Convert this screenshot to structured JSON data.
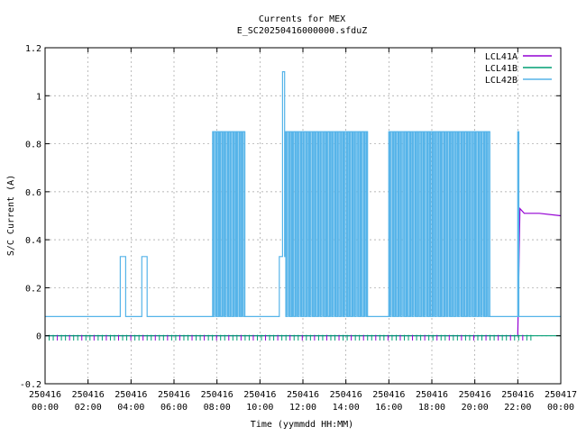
{
  "chart_data": {
    "type": "line",
    "title": "Currents for MEX",
    "subtitle": "E_SC20250416000000.sfduZ",
    "xlabel": "Time (yymmdd HH:MM)",
    "ylabel": "S/C Current (A)",
    "xlim": [
      0,
      24
    ],
    "ylim": [
      -0.2,
      1.2
    ],
    "grid": true,
    "legend_position": "top-right",
    "x_ticks": [
      {
        "value": 0,
        "date": "250416",
        "time": "00:00"
      },
      {
        "value": 2,
        "date": "250416",
        "time": "02:00"
      },
      {
        "value": 4,
        "date": "250416",
        "time": "04:00"
      },
      {
        "value": 6,
        "date": "250416",
        "time": "06:00"
      },
      {
        "value": 8,
        "date": "250416",
        "time": "08:00"
      },
      {
        "value": 10,
        "date": "250416",
        "time": "10:00"
      },
      {
        "value": 12,
        "date": "250416",
        "time": "12:00"
      },
      {
        "value": 14,
        "date": "250416",
        "time": "14:00"
      },
      {
        "value": 16,
        "date": "250416",
        "time": "16:00"
      },
      {
        "value": 18,
        "date": "250416",
        "time": "18:00"
      },
      {
        "value": 20,
        "date": "250416",
        "time": "20:00"
      },
      {
        "value": 22,
        "date": "250416",
        "time": "22:00"
      },
      {
        "value": 24,
        "date": "250417",
        "time": "00:00"
      }
    ],
    "y_ticks": [
      {
        "value": -0.2,
        "label": "-0.2"
      },
      {
        "value": 0,
        "label": "0"
      },
      {
        "value": 0.2,
        "label": "0.2"
      },
      {
        "value": 0.4,
        "label": "0.4"
      },
      {
        "value": 0.6,
        "label": "0.6"
      },
      {
        "value": 0.8,
        "label": "0.8"
      },
      {
        "value": 1,
        "label": "1"
      },
      {
        "value": 1.2,
        "label": "1.2"
      }
    ],
    "series": [
      {
        "name": "LCL41A",
        "color": "#9400d3",
        "x": [
          0,
          21.9,
          22.0,
          22.1,
          22.3,
          23.0,
          24.0
        ],
        "y": [
          0.0,
          0.0,
          0.0,
          0.53,
          0.51,
          0.51,
          0.5
        ]
      },
      {
        "name": "LCL41B",
        "color": "#009e73",
        "x": [
          0,
          24
        ],
        "y": [
          0.0,
          0.0
        ]
      },
      {
        "name": "LCL42B",
        "color": "#56b4e9",
        "x": [
          0,
          3.5,
          3.5,
          3.75,
          3.75,
          4.5,
          4.5,
          4.75,
          4.75,
          7.8,
          7.8,
          9.3,
          9.3,
          10.9,
          10.9,
          11.05,
          11.05,
          11.15,
          11.15,
          11.2,
          11.2,
          15.0,
          15.0,
          16.0,
          16.0,
          20.7,
          20.7,
          22.0,
          22.0,
          22.05,
          22.05,
          24.0
        ],
        "y": [
          0.08,
          0.08,
          0.33,
          0.33,
          0.08,
          0.08,
          0.33,
          0.33,
          0.08,
          0.08,
          0.85,
          0.85,
          0.08,
          0.08,
          0.33,
          0.33,
          1.1,
          1.1,
          0.33,
          0.33,
          0.85,
          0.85,
          0.08,
          0.08,
          0.85,
          0.85,
          0.08,
          0.08,
          0.85,
          0.85,
          0.08,
          0.08
        ]
      }
    ]
  }
}
